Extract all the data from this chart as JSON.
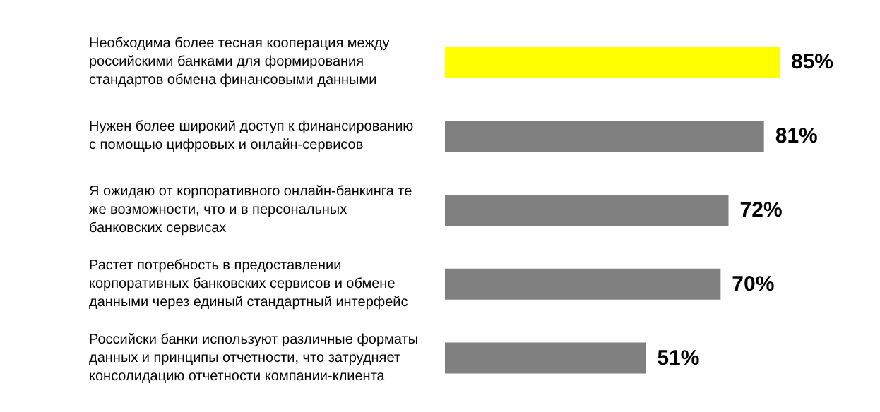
{
  "chart_data": {
    "type": "bar",
    "orientation": "horizontal",
    "categories": [
      "Необходима более тесная кооперация между\nроссийскими банками для формирования\nстандартов обмена финансовыми данными",
      "Нужен более широкий доступ к финансированию\nс помощью цифровых и онлайн-сервисов",
      "Я ожидаю от корпоративного онлайн-банкинга те\nже возможности, что и в персональных\nбанковских сервисах",
      "Растет потребность в предоставлении\nкорпоративных банковских сервисов и обмене\nданными через единый стандартный интерфейс",
      "Российски банки используют различные форматы\nданных и принципы отчетности, что затрудняет\nконсолидацию отчетности компании-клиента"
    ],
    "values": [
      85,
      81,
      72,
      70,
      51
    ],
    "colors": [
      "#ffff00",
      "#808080",
      "#808080",
      "#808080",
      "#808080"
    ],
    "value_labels": [
      "85%",
      "81%",
      "72%",
      "70%",
      "51%"
    ]
  }
}
